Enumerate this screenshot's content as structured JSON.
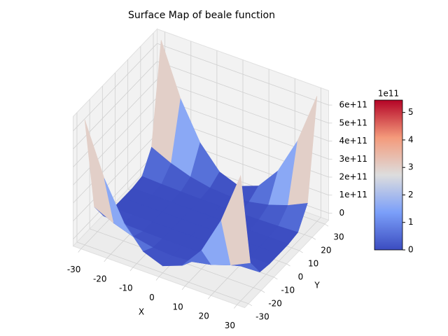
{
  "chart_data": {
    "type": "surface",
    "title": "Surface Map of beale function",
    "xlabel": "X",
    "ylabel": "Y",
    "x": [
      -30,
      -22.5,
      -15,
      -7.5,
      0,
      7.5,
      15,
      22.5,
      30
    ],
    "y": [
      -30,
      -22.5,
      -15,
      -7.5,
      0,
      7.5,
      15,
      22.5,
      30
    ],
    "z": [
      [
        656100000000,
        116800000000,
        10250000000,
        160000000,
        0,
        160000000,
        10250000000,
        116800000000,
        656100000000
      ],
      [
        369100000000,
        65690000000,
        5767000000,
        90100000,
        0,
        90100000,
        5767000000,
        65690000000,
        369100000000
      ],
      [
        164000000000,
        29190000000,
        2563000000,
        40000000,
        0,
        40000000,
        2563000000,
        29190000000,
        164000000000
      ],
      [
        41000000000,
        7300000000,
        641000000,
        10000000,
        0,
        10000000,
        641000000,
        7300000000,
        41000000000
      ],
      [
        0,
        0,
        0,
        0,
        0,
        0,
        0,
        0,
        0
      ],
      [
        41000000000,
        7300000000,
        641000000,
        10000000,
        0,
        10000000,
        641000000,
        7300000000,
        41000000000
      ],
      [
        164000000000,
        29190000000,
        2563000000,
        40000000,
        0,
        40000000,
        2563000000,
        29190000000,
        164000000000
      ],
      [
        369100000000,
        65690000000,
        5767000000,
        90100000,
        0,
        90100000,
        5767000000,
        65690000000,
        369100000000
      ],
      [
        656100000000,
        116800000000,
        10250000000,
        160000000,
        0,
        160000000,
        10250000000,
        116800000000,
        656100000000
      ]
    ],
    "xlim": [
      -33,
      33
    ],
    "ylim": [
      -33,
      33
    ],
    "zlim": [
      -39000000000,
      680000000000
    ],
    "xticks": [
      -30,
      -20,
      -10,
      0,
      10,
      20,
      30
    ],
    "yticks": [
      -30,
      -20,
      -10,
      0,
      10,
      20,
      30
    ],
    "zticks": [
      0,
      {
        "value": 100000000000,
        "label": "1e+11"
      },
      {
        "value": 200000000000,
        "label": "2e+11"
      },
      {
        "value": 300000000000,
        "label": "3e+11"
      },
      {
        "value": 400000000000,
        "label": "4e+11"
      },
      {
        "value": 500000000000,
        "label": "5e+11"
      },
      {
        "value": 600000000000,
        "label": "6e+11"
      }
    ],
    "grid": true,
    "colormap": [
      "#3b4cc0",
      "#7b9ff9",
      "#dddddd",
      "#f49a7b",
      "#b40426"
    ],
    "colorbar": {
      "lim": [
        0,
        5.45
      ],
      "ticks": [
        0,
        1,
        2,
        3,
        4,
        5
      ],
      "offset_label": "1e11"
    }
  }
}
